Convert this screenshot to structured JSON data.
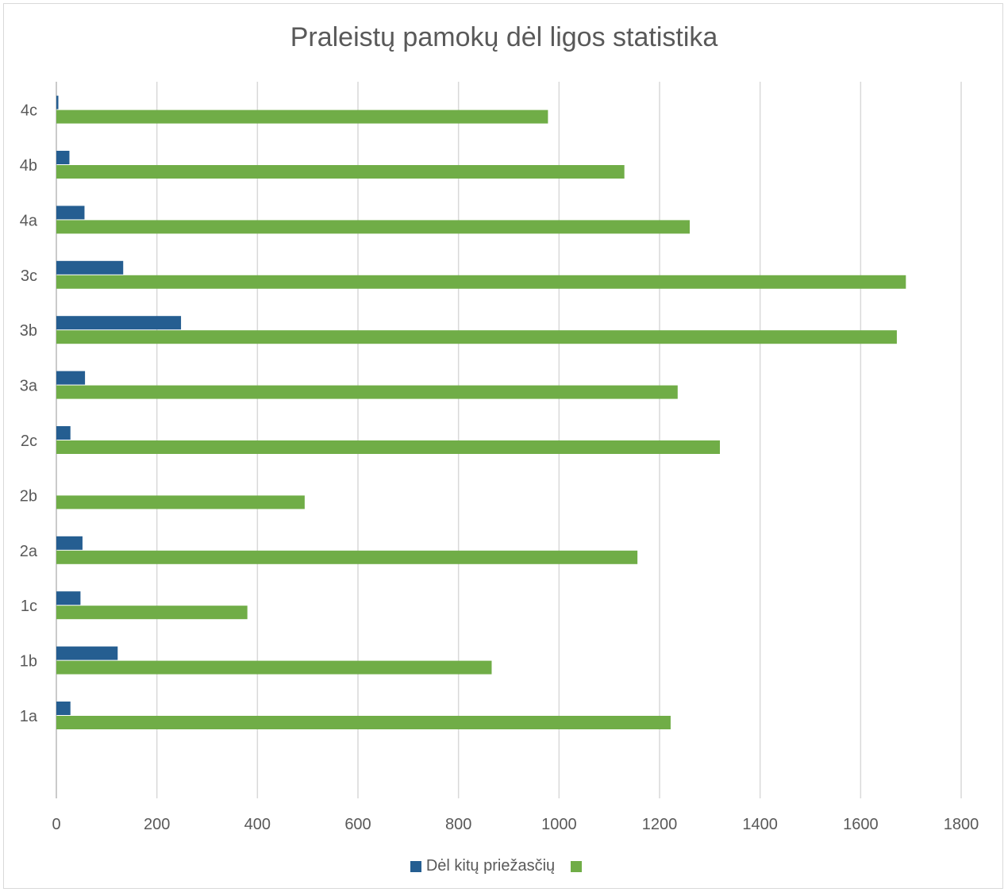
{
  "chart_data": {
    "type": "bar",
    "orientation": "horizontal",
    "title": "Praleistų pamokų dėl ligos statistika",
    "categories": [
      "1a",
      "1b",
      "1c",
      "2a",
      "2b",
      "2c",
      "3a",
      "3b",
      "3c",
      "4a",
      "4b",
      "4c"
    ],
    "series": [
      {
        "name": "Dėl kitų priežasčių",
        "color": "#255e91",
        "values": [
          28,
          122,
          48,
          52,
          0,
          28,
          57,
          248,
          133,
          56,
          26,
          4
        ]
      },
      {
        "name": "",
        "color": "#70ad47",
        "values": [
          1222,
          866,
          380,
          1156,
          494,
          1320,
          1236,
          1672,
          1690,
          1260,
          1130,
          978
        ]
      }
    ],
    "xlim": [
      0,
      1800
    ],
    "xticks": [
      "0",
      "200",
      "400",
      "600",
      "800",
      "1000",
      "1200",
      "1400",
      "1600",
      "1800"
    ],
    "grid": true,
    "legend_position": "bottom"
  }
}
